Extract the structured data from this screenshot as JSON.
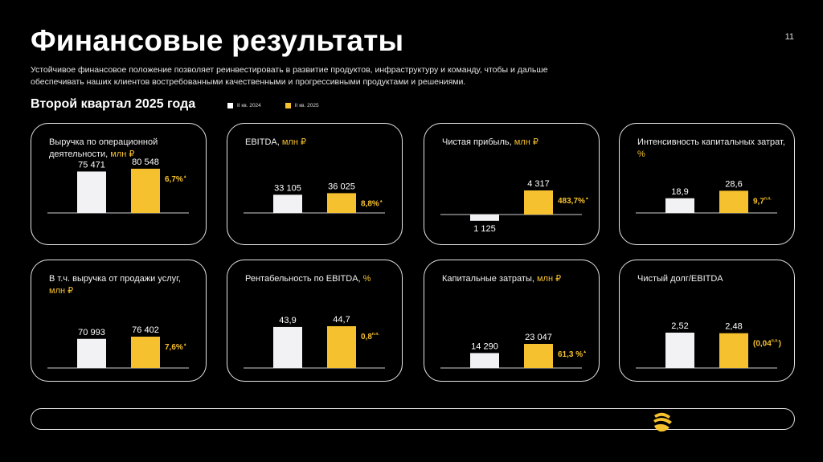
{
  "header": {
    "title": "Финансовые результаты",
    "page_number": "11",
    "intro": "Устойчивое финансовое положение позволяет реинвестировать в развитие продуктов, инфраструктуру и команду, чтобы и дальше обеспечивать наших клиентов востребованными качественными и прогрессивными продуктами и решениями.",
    "subtitle": "Второй квартал 2025 года"
  },
  "legend": [
    {
      "label": "II кв. 2024",
      "color": "#ffffff"
    },
    {
      "label": "II кв. 2025",
      "color": "#f6c12e"
    }
  ],
  "colors": {
    "accent": "#f6c12e",
    "bar_prev": "#f2f2f4",
    "background": "#000000"
  },
  "logo_icon": "yellow-stripes-logo-icon",
  "chart_data": [
    {
      "type": "bar",
      "title": "Выручка по операционной деятельности, ",
      "unit": "млн ₽",
      "categories": [
        "II кв. 2024",
        "II кв. 2025"
      ],
      "values": [
        75471,
        80548
      ],
      "labels": [
        "75 471",
        "80 548"
      ],
      "change": "6,7%",
      "change_sup": "▲",
      "ylim": [
        0,
        80548
      ]
    },
    {
      "type": "bar",
      "title": "EBITDA, ",
      "unit": "млн ₽",
      "categories": [
        "II кв. 2024",
        "II кв. 2025"
      ],
      "values": [
        33105,
        36025
      ],
      "labels": [
        "33 105",
        "36 025"
      ],
      "change": "8,8%",
      "change_sup": "▲",
      "ylim": [
        0,
        80548
      ]
    },
    {
      "type": "bar",
      "title": "Чистая прибыль, ",
      "unit": "млн ₽",
      "categories": [
        "II кв. 2024",
        "II кв. 2025"
      ],
      "values": [
        -1125,
        4317
      ],
      "labels": [
        "1 125",
        "4 317"
      ],
      "change": "483,7%",
      "change_sup": "▲",
      "ylim": [
        -4317,
        4317
      ]
    },
    {
      "type": "bar",
      "title": "Интенсивность капитальных затрат, ",
      "unit": "%",
      "categories": [
        "II кв. 2024",
        "II кв. 2025"
      ],
      "values": [
        18.9,
        28.6
      ],
      "labels": [
        "18,9",
        "28,6"
      ],
      "change": "9,7",
      "change_sup": "п.п.",
      "ylim": [
        0,
        57
      ]
    },
    {
      "type": "bar",
      "title": "В т.ч. выручка от продажи услуг, ",
      "unit": "млн ₽",
      "categories": [
        "II кв. 2024",
        "II кв. 2025"
      ],
      "values": [
        70993,
        76402
      ],
      "labels": [
        "70 993",
        "76 402"
      ],
      "change": "7,6%",
      "change_sup": "▲",
      "ylim": [
        0,
        76402
      ]
    },
    {
      "type": "bar",
      "title": "Рентабельность по EBITDA, ",
      "unit": "%",
      "categories": [
        "II кв. 2024",
        "II кв. 2025"
      ],
      "values": [
        43.9,
        44.7
      ],
      "labels": [
        "43,9",
        "44,7"
      ],
      "change": "0,8",
      "change_sup": "п.п.",
      "ylim": [
        0,
        44.7
      ]
    },
    {
      "type": "bar",
      "title": "Капитальные затраты, ",
      "unit": "млн ₽",
      "categories": [
        "II кв. 2024",
        "II кв. 2025"
      ],
      "values": [
        14290,
        23047
      ],
      "labels": [
        "14 290",
        "23 047"
      ],
      "change": "61,3 %",
      "change_sup": "▲",
      "ylim": [
        0,
        46094
      ]
    },
    {
      "type": "bar",
      "title": "Чистый долг/EBITDA",
      "unit": "",
      "categories": [
        "II кв. 2024",
        "II кв. 2025"
      ],
      "values": [
        2.52,
        2.48
      ],
      "labels": [
        "2,52",
        "2,48"
      ],
      "change": "(0,04",
      "change_sup": "п.п.",
      "change_close": ")",
      "ylim": [
        0,
        2.52
      ]
    }
  ]
}
